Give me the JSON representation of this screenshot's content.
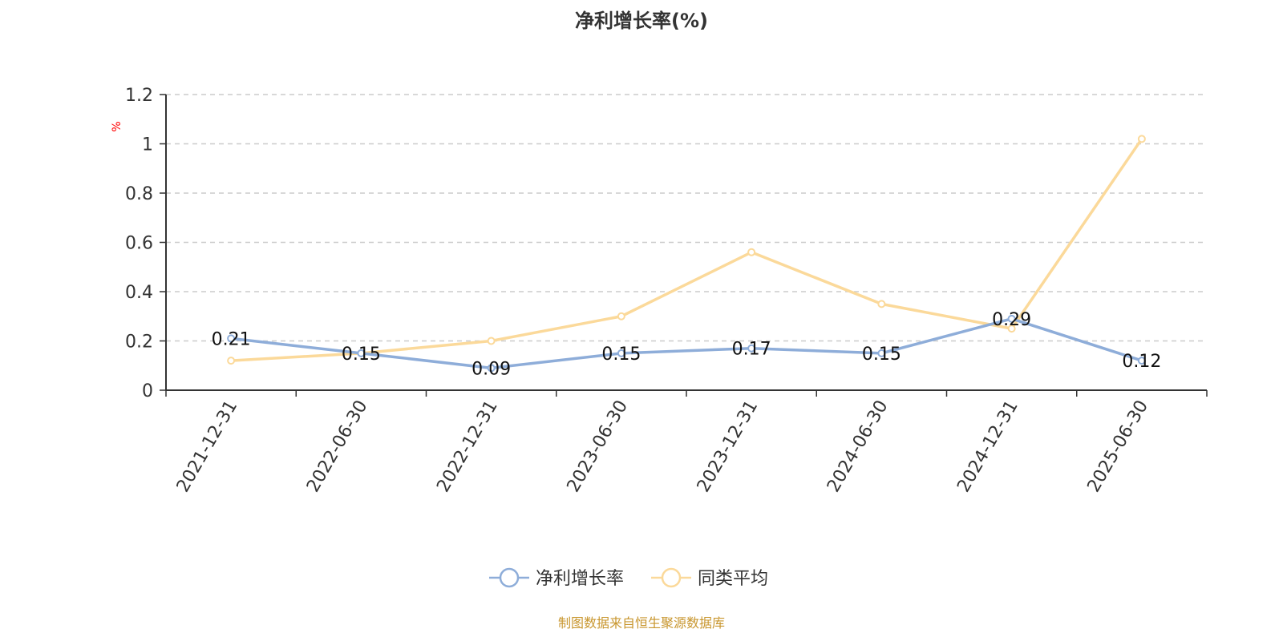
{
  "chart_data": {
    "type": "line",
    "title": "净利增长率(%)",
    "ylabel": "%",
    "ylim": [
      0,
      1.2
    ],
    "yticks": [
      0,
      0.2,
      0.4,
      0.6,
      0.8,
      1,
      1.2
    ],
    "ytick_labels": [
      "0",
      "0.2",
      "0.4",
      "0.6",
      "0.8",
      "1",
      "1.2"
    ],
    "grid": "horizontal dashed",
    "legend_placement": "bottom",
    "categories": [
      "2021-12-31",
      "2022-06-30",
      "2022-12-31",
      "2023-06-30",
      "2023-12-31",
      "2024-06-30",
      "2024-12-31",
      "2025-06-30"
    ],
    "series": [
      {
        "name": "净利增长率",
        "color": "#8eadd9",
        "values": [
          0.21,
          0.15,
          0.09,
          0.15,
          0.17,
          0.15,
          0.29,
          0.12
        ],
        "labels": [
          "0.21",
          "0.15",
          "0.09",
          "0.15",
          "0.17",
          "0.15",
          "0.29",
          "0.12"
        ]
      },
      {
        "name": "同类平均",
        "color": "#fbd99a",
        "values": [
          0.12,
          0.15,
          0.2,
          0.3,
          0.56,
          0.35,
          0.25,
          1.02
        ]
      }
    ]
  },
  "source": "制图数据来自恒生聚源数据库"
}
